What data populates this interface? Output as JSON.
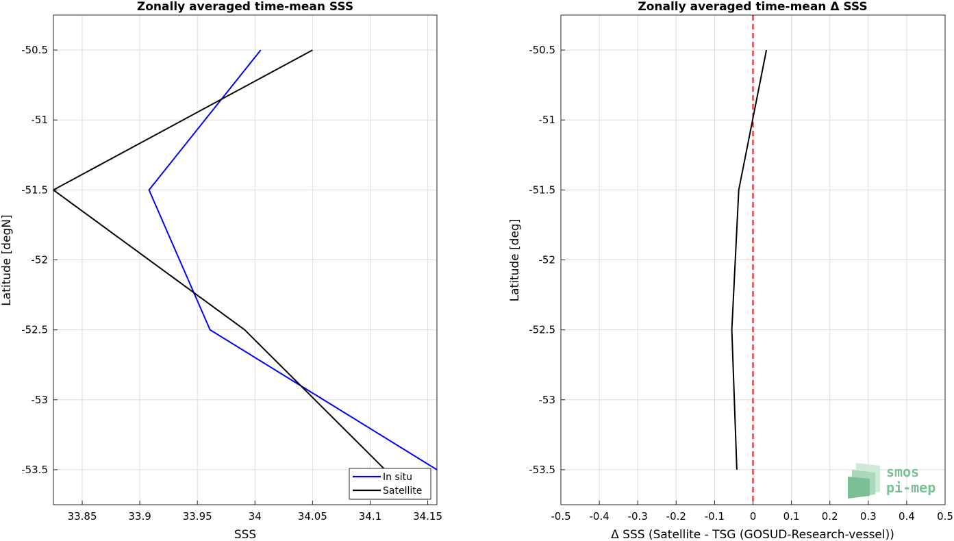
{
  "chart_data": [
    {
      "type": "line",
      "title": "Zonally averaged time-mean SSS",
      "xlabel": "SSS",
      "ylabel": "Latitude [degN]",
      "xlim": [
        33.825,
        34.158
      ],
      "ylim": [
        -53.75,
        -50.25
      ],
      "xticks": [
        33.85,
        33.9,
        33.95,
        34,
        34.05,
        34.1,
        34.15
      ],
      "xtick_labels": [
        "33.85",
        "33.9",
        "33.95",
        "34",
        "34.05",
        "34.1",
        "34.15"
      ],
      "yticks": [
        -50.5,
        -51,
        -51.5,
        -52,
        -52.5,
        -53,
        -53.5
      ],
      "ytick_labels": [
        "-50.5",
        "-51",
        "-51.5",
        "-52",
        "-52.5",
        "-53",
        "-53.5"
      ],
      "grid": true,
      "legend": "bottom-right",
      "series": [
        {
          "name": "In situ",
          "color": "#0000ff",
          "x": [
            34.005,
            33.908,
            33.961,
            34.158
          ],
          "y": [
            -50.5,
            -51.5,
            -52.5,
            -53.5
          ]
        },
        {
          "name": "Satellite",
          "color": "#000000",
          "x": [
            34.05,
            33.825,
            33.991,
            34.113
          ],
          "y": [
            -50.5,
            -51.5,
            -52.5,
            -53.5
          ]
        }
      ]
    },
    {
      "type": "line",
      "title": "Zonally averaged time-mean Δ SSS",
      "xlabel": "Δ SSS (Satellite - TSG (GOSUD-Research-vessel))",
      "ylabel": "Latitude [deg]",
      "xlim": [
        -0.5,
        0.5
      ],
      "ylim": [
        -53.75,
        -50.25
      ],
      "xticks": [
        -0.5,
        -0.4,
        -0.3,
        -0.2,
        -0.1,
        0,
        0.1,
        0.2,
        0.3,
        0.4,
        0.5
      ],
      "xtick_labels": [
        "-0.5",
        "-0.4",
        "-0.3",
        "-0.2",
        "-0.1",
        "0",
        "0.1",
        "0.2",
        "0.3",
        "0.4",
        "0.5"
      ],
      "yticks": [
        -50.5,
        -51,
        -51.5,
        -52,
        -52.5,
        -53,
        -53.5
      ],
      "ytick_labels": [
        "-50.5",
        "-51",
        "-51.5",
        "-52",
        "-52.5",
        "-53",
        "-53.5"
      ],
      "grid": true,
      "series": [
        {
          "color": "#000000",
          "x": [
            0.035,
            -0.037,
            -0.055,
            -0.042
          ],
          "y": [
            -50.5,
            -51.5,
            -52.5,
            -53.5
          ]
        }
      ],
      "reference_line": {
        "x": 0,
        "color": "#ff0000",
        "style": "dashed"
      }
    }
  ],
  "logo": {
    "line1": "smos",
    "line2": "pi-mep",
    "color": "#7bbf96"
  }
}
